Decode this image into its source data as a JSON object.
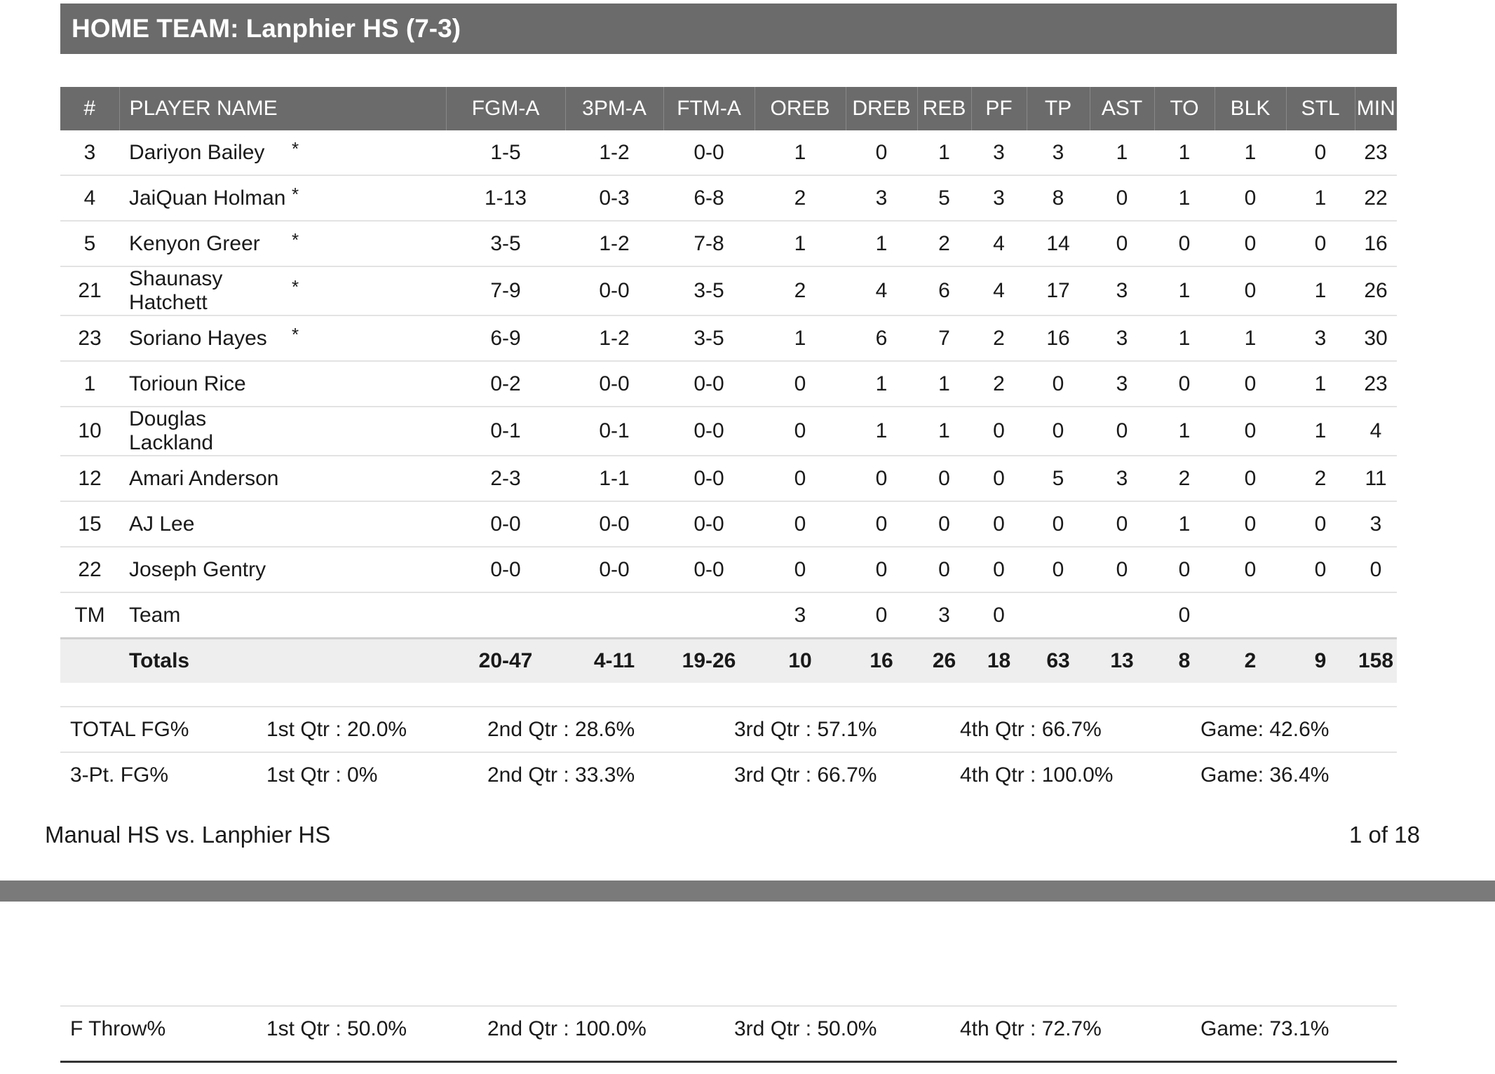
{
  "team_header": "HOME TEAM: Lanphier HS (7-3)",
  "columns": [
    "#",
    "PLAYER NAME",
    "",
    "FGM-A",
    "3PM-A",
    "FTM-A",
    "OREB",
    "DREB",
    "REB",
    "PF",
    "TP",
    "AST",
    "TO",
    "BLK",
    "STL",
    "MIN"
  ],
  "players": [
    [
      "3",
      "Dariyon Bailey",
      "*",
      "1-5",
      "1-2",
      "0-0",
      "1",
      "0",
      "1",
      "3",
      "3",
      "1",
      "1",
      "1",
      "0",
      "23"
    ],
    [
      "4",
      "JaiQuan Holman",
      "*",
      "1-13",
      "0-3",
      "6-8",
      "2",
      "3",
      "5",
      "3",
      "8",
      "0",
      "1",
      "0",
      "1",
      "22"
    ],
    [
      "5",
      "Kenyon Greer",
      "*",
      "3-5",
      "1-2",
      "7-8",
      "1",
      "1",
      "2",
      "4",
      "14",
      "0",
      "0",
      "0",
      "0",
      "16"
    ],
    [
      "21",
      "Shaunasy Hatchett",
      "*",
      "7-9",
      "0-0",
      "3-5",
      "2",
      "4",
      "6",
      "4",
      "17",
      "3",
      "1",
      "0",
      "1",
      "26"
    ],
    [
      "23",
      "Soriano Hayes",
      "*",
      "6-9",
      "1-2",
      "3-5",
      "1",
      "6",
      "7",
      "2",
      "16",
      "3",
      "1",
      "1",
      "3",
      "30"
    ],
    [
      "1",
      "Torioun Rice",
      "",
      "0-2",
      "0-0",
      "0-0",
      "0",
      "1",
      "1",
      "2",
      "0",
      "3",
      "0",
      "0",
      "1",
      "23"
    ],
    [
      "10",
      "Douglas Lackland",
      "",
      "0-1",
      "0-1",
      "0-0",
      "0",
      "1",
      "1",
      "0",
      "0",
      "0",
      "1",
      "0",
      "1",
      "4"
    ],
    [
      "12",
      "Amari Anderson",
      "",
      "2-3",
      "1-1",
      "0-0",
      "0",
      "0",
      "0",
      "0",
      "5",
      "3",
      "2",
      "0",
      "2",
      "11"
    ],
    [
      "15",
      "AJ Lee",
      "",
      "0-0",
      "0-0",
      "0-0",
      "0",
      "0",
      "0",
      "0",
      "0",
      "0",
      "1",
      "0",
      "0",
      "3"
    ],
    [
      "22",
      "Joseph Gentry",
      "",
      "0-0",
      "0-0",
      "0-0",
      "0",
      "0",
      "0",
      "0",
      "0",
      "0",
      "0",
      "0",
      "0",
      "0"
    ]
  ],
  "team_row": [
    "TM",
    "Team",
    "",
    "",
    "",
    "",
    "3",
    "0",
    "3",
    "0",
    "",
    "",
    "0",
    "",
    "",
    ""
  ],
  "totals": [
    "",
    "Totals",
    "",
    "20-47",
    "4-11",
    "19-26",
    "10",
    "16",
    "26",
    "18",
    "63",
    "13",
    "8",
    "2",
    "9",
    "158"
  ],
  "shooting": {
    "fg": [
      "TOTAL FG%",
      "1st Qtr : 20.0%",
      "2nd Qtr : 28.6%",
      "3rd Qtr : 57.1%",
      "4th Qtr : 66.7%",
      "Game: 42.6%"
    ],
    "three": [
      "3-Pt. FG%",
      "1st Qtr : 0%",
      "2nd Qtr : 33.3%",
      "3rd Qtr : 66.7%",
      "4th Qtr : 100.0%",
      "Game: 36.4%"
    ],
    "ft": [
      "F Throw%",
      "1st Qtr : 50.0%",
      "2nd Qtr : 100.0%",
      "3rd Qtr : 50.0%",
      "4th Qtr : 72.7%",
      "Game: 73.1%"
    ]
  },
  "footer": {
    "matchup": "Manual HS vs. Lanphier HS",
    "page": "1 of 18"
  }
}
